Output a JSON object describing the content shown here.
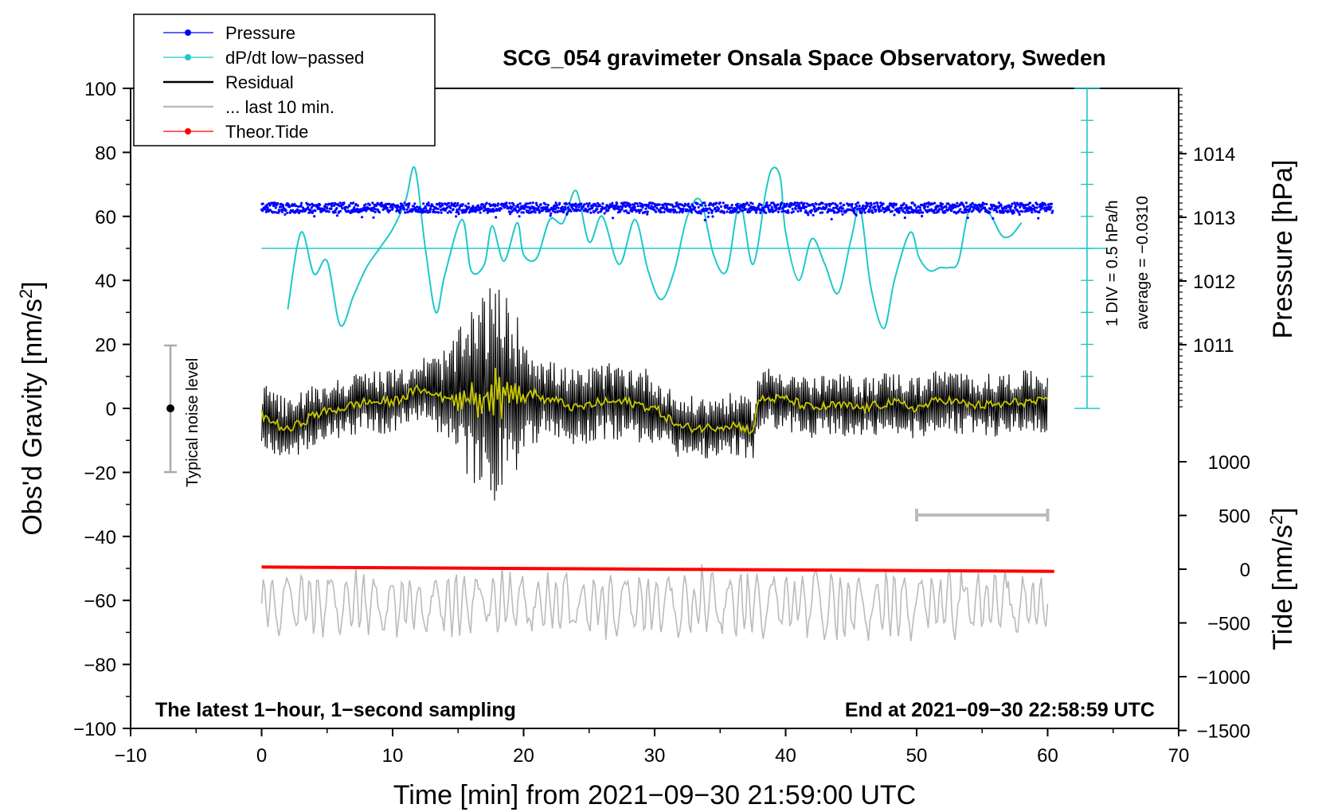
{
  "chart_data": {
    "type": "line",
    "title": "SCG_054 gravimeter Onsala Space Observatory, Sweden",
    "xlabel": "Time [min] from 2021−09−30 21:59:00 UTC",
    "ylabel_left": "Obs'd Gravity [nm/s",
    "ylabel_left_sup": "2",
    "ylabel_left_close": "]",
    "ylabel_right_pressure": "Pressure [hPa]",
    "ylabel_right_tide": "Tide [nm/s",
    "ylabel_right_tide_sup": "2",
    "ylabel_right_tide_close": "]",
    "xlim": [
      -10,
      70
    ],
    "ylim_left": [
      -100,
      100
    ],
    "x_ticks": [
      "−10",
      "0",
      "10",
      "20",
      "30",
      "40",
      "50",
      "60",
      "70"
    ],
    "y_ticks_left": [
      "100",
      "80",
      "60",
      "40",
      "20",
      "0",
      "−20",
      "−40",
      "−60",
      "−80",
      "−100"
    ],
    "y_ticks_pressure": [
      "1014",
      "1013",
      "1012",
      "1011"
    ],
    "y_ticks_tide": [
      "1000",
      "500",
      "0",
      "−500",
      "−1000",
      "−1500"
    ],
    "legend": [
      {
        "label": "Pressure",
        "color": "#0000ff",
        "marker": true
      },
      {
        "label": "dP/dt low−passed",
        "color": "#1ec8c8",
        "marker": true
      },
      {
        "label": "Residual",
        "color": "#000000",
        "marker": false
      },
      {
        "label": "... last 10 min.",
        "color": "#bbbbbb",
        "marker": false
      },
      {
        "label": "Theor.Tide",
        "color": "#ff0000",
        "marker": true
      }
    ],
    "annotations": {
      "bottom_left": "The latest 1−hour, 1−second sampling",
      "bottom_right": "End at 2021−09−30 22:58:59 UTC",
      "noise": "Typical noise level",
      "div_label": "1 DIV = 0.5 hPa/h",
      "average_label": "average = −0.0310"
    },
    "series": [
      {
        "name": "Pressure",
        "unit": "hPa",
        "x_range": [
          0,
          60.4
        ],
        "level": 1013.15,
        "scatter": 0.08
      },
      {
        "name": "dP/dt low-passed",
        "unit": "hPa/h",
        "x": [
          2,
          3,
          4,
          5,
          6,
          7,
          8,
          9,
          10,
          11,
          11.7,
          12.5,
          13.3,
          14,
          15.3,
          16,
          17,
          17.6,
          18.5,
          19.5,
          20,
          21,
          22,
          23,
          24,
          25,
          26,
          27.3,
          28.5,
          29.5,
          30.5,
          31.5,
          32.5,
          33.5,
          34.5,
          35.5,
          36.5,
          37.5,
          38.5,
          39,
          39.6,
          40,
          41,
          42,
          43,
          44,
          45,
          45.7,
          46.5,
          47.5,
          48.3,
          49.5,
          50.2,
          51,
          51.8,
          52.5,
          53.2,
          54,
          55,
          55.7,
          56.5,
          57.2,
          58
        ],
        "y": [
          31,
          55,
          42,
          46,
          26,
          35,
          44,
          50,
          56,
          65,
          75,
          50,
          30,
          42,
          59,
          43,
          45,
          57,
          46,
          58,
          48,
          47,
          59,
          58,
          68,
          52,
          60,
          45,
          59,
          43,
          34,
          43,
          60,
          65,
          48,
          43,
          64,
          45,
          68,
          75,
          72,
          55,
          40,
          53,
          45,
          36,
          53,
          62,
          38,
          25,
          40,
          55,
          47,
          43,
          44,
          44,
          46,
          62,
          63,
          60,
          54,
          54,
          58
        ]
      },
      {
        "name": "Residual",
        "unit": "nm/s2",
        "x_range": [
          0,
          60
        ],
        "envelope_min": 10
      },
      {
        "name": "Residual smoothed",
        "unit": "nm/s2",
        "x": [
          0,
          2,
          4,
          6,
          8,
          10,
          12,
          14,
          16,
          18,
          20,
          22,
          24,
          26,
          28,
          30,
          32,
          34,
          36,
          37.5,
          38,
          40,
          42,
          44,
          46,
          48,
          50,
          52,
          54,
          56,
          58,
          60
        ],
        "y": [
          -2,
          -7,
          -2,
          0,
          2,
          2,
          6,
          4,
          3,
          5,
          5,
          3,
          0,
          2,
          2,
          0,
          -6,
          -6,
          -5,
          -7,
          3,
          3,
          0,
          1,
          0,
          2,
          0,
          3,
          1,
          1,
          2,
          2
        ]
      },
      {
        "name": "... last 10 min.",
        "unit": "nm/s2",
        "x_range": [
          0,
          60
        ],
        "center": -61
      },
      {
        "name": "Theor.Tide",
        "unit": "nm/s2",
        "x": [
          0,
          60.5
        ],
        "y": [
          20,
          -20
        ]
      }
    ],
    "time_scale_bar": {
      "x": [
        50,
        60
      ]
    }
  }
}
